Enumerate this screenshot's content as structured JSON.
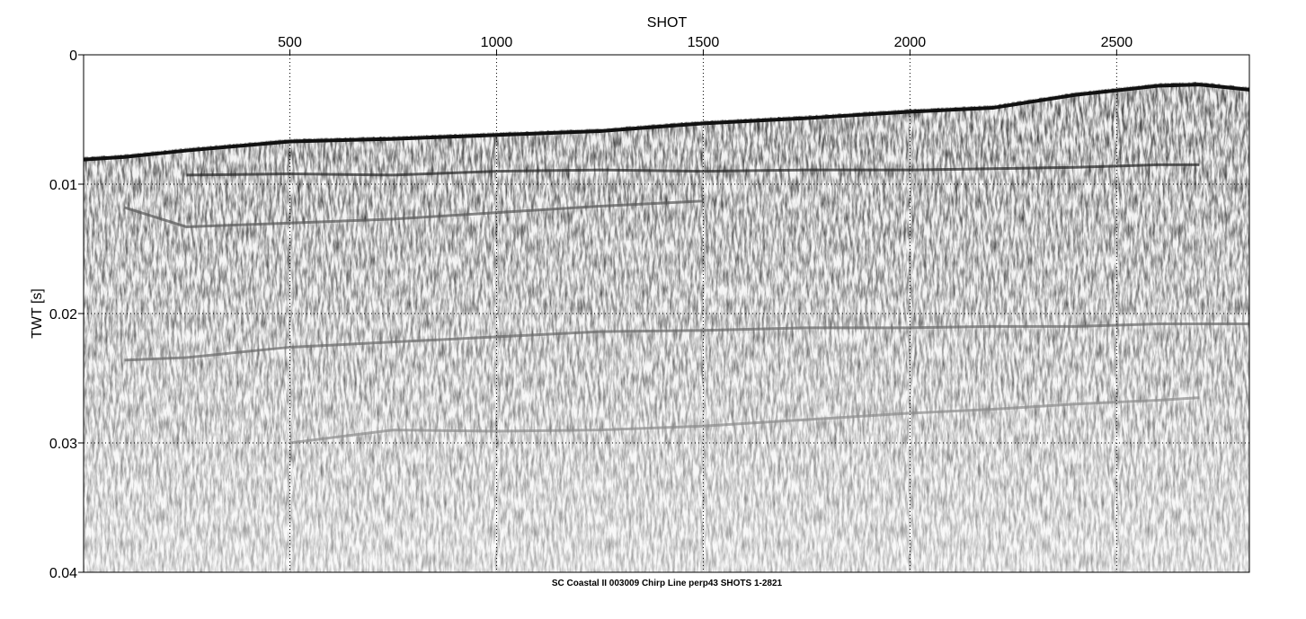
{
  "chart_data": {
    "type": "seismic",
    "xlabel": "SHOT",
    "ylabel": "TWT [s]",
    "caption": "SC Coastal II 003009 Chirp Line perp43 SHOTS 1-2821",
    "xlim": [
      1,
      2821
    ],
    "xticks": [
      500,
      1000,
      1500,
      2000,
      2500
    ],
    "ylim": [
      0,
      0.04
    ],
    "yticks": [
      0,
      0.01,
      0.02,
      0.03,
      0.04
    ],
    "y_inverted": true,
    "grid": true,
    "x": [
      1,
      100,
      250,
      500,
      750,
      1000,
      1250,
      1500,
      1750,
      2000,
      2200,
      2400,
      2600,
      2700,
      2821
    ],
    "series": [
      {
        "color": "#111111",
        "values": [
          0.0081,
          0.0079,
          0.0074,
          0.0067,
          0.0065,
          0.0062,
          0.0059,
          0.0053,
          0.0049,
          0.0044,
          0.0041,
          0.0031,
          0.0024,
          0.0023,
          0.0027
        ]
      },
      {
        "color": "#222222",
        "values": [
          null,
          null,
          0.0093,
          0.0092,
          0.0093,
          0.009,
          0.0089,
          0.009,
          0.0089,
          0.0089,
          0.0088,
          0.0087,
          0.0085,
          0.0085,
          null
        ]
      },
      {
        "color": "#555555",
        "values": [
          null,
          0.0118,
          0.0133,
          0.013,
          0.0127,
          0.0122,
          0.0117,
          0.0113,
          null,
          null,
          null,
          null,
          null,
          null,
          null
        ]
      },
      {
        "color": "#666666",
        "values": [
          null,
          0.0236,
          0.0234,
          0.0226,
          0.0222,
          0.0218,
          0.0214,
          0.0213,
          0.0211,
          0.0211,
          0.021,
          0.021,
          0.0208,
          0.0208,
          0.0208
        ]
      },
      {
        "color": "#8a8a8a",
        "values": [
          null,
          null,
          null,
          0.03,
          0.029,
          0.0291,
          0.029,
          0.0287,
          0.0282,
          0.0277,
          0.0274,
          0.027,
          0.0267,
          0.0265,
          null
        ]
      }
    ]
  }
}
